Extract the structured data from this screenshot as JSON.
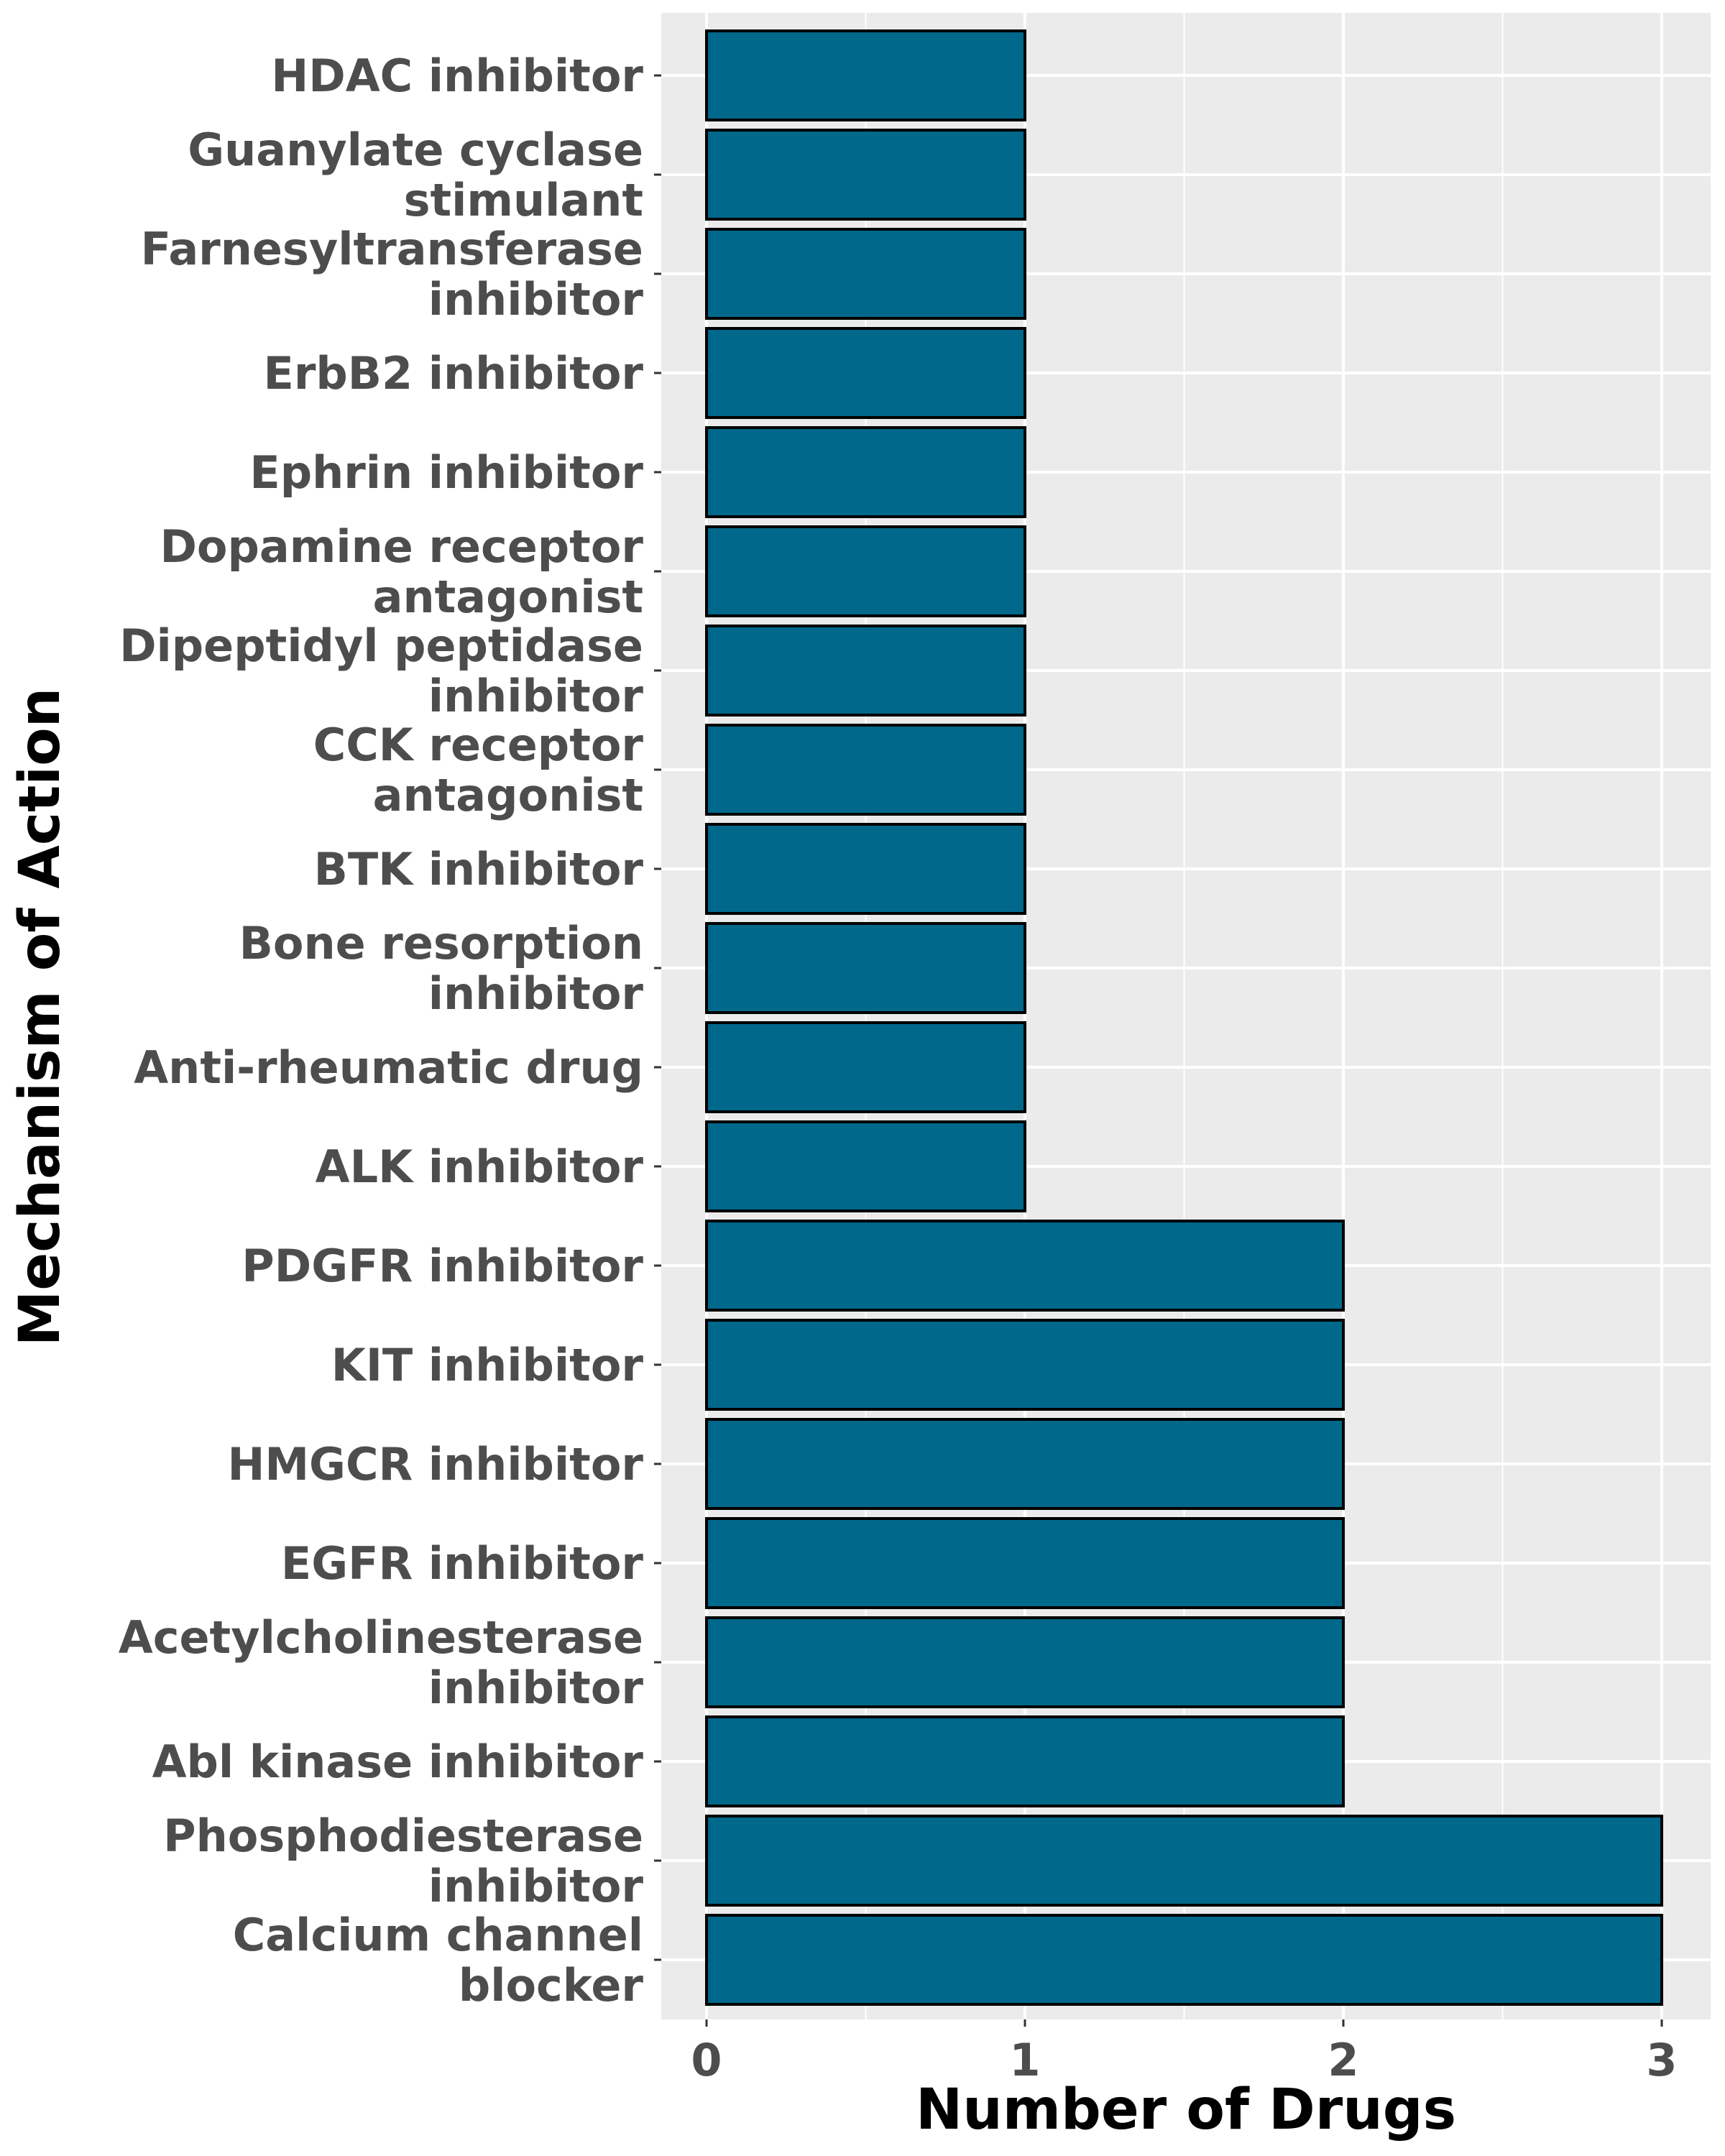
{
  "chart_data": {
    "type": "bar",
    "orientation": "horizontal",
    "xlabel": "Number of Drugs",
    "ylabel": "Mechanism of Action",
    "xlim": [
      0,
      3
    ],
    "xticks": [
      0,
      1,
      2,
      3
    ],
    "grid": true,
    "bar_color": "#00688b",
    "bar_edge_color": "#000000",
    "panel_background": "#ebebeb",
    "categories": [
      [
        "HDAC inhibitor"
      ],
      [
        "Guanylate cyclase",
        "stimulant"
      ],
      [
        "Farnesyltransferase",
        "inhibitor"
      ],
      [
        "ErbB2 inhibitor"
      ],
      [
        "Ephrin inhibitor"
      ],
      [
        "Dopamine receptor",
        "antagonist"
      ],
      [
        "Dipeptidyl peptidase",
        "inhibitor"
      ],
      [
        "CCK receptor",
        "antagonist"
      ],
      [
        "BTK inhibitor"
      ],
      [
        "Bone resorption",
        "inhibitor"
      ],
      [
        "Anti-rheumatic drug"
      ],
      [
        "ALK inhibitor"
      ],
      [
        "PDGFR inhibitor"
      ],
      [
        "KIT inhibitor"
      ],
      [
        "HMGCR inhibitor"
      ],
      [
        "EGFR inhibitor"
      ],
      [
        "Acetylcholinesterase",
        "inhibitor"
      ],
      [
        "Abl kinase inhibitor"
      ],
      [
        "Phosphodiesterase",
        "inhibitor"
      ],
      [
        "Calcium channel",
        "blocker"
      ]
    ],
    "values": [
      1,
      1,
      1,
      1,
      1,
      1,
      1,
      1,
      1,
      1,
      1,
      1,
      2,
      2,
      2,
      2,
      2,
      2,
      3,
      3
    ]
  }
}
